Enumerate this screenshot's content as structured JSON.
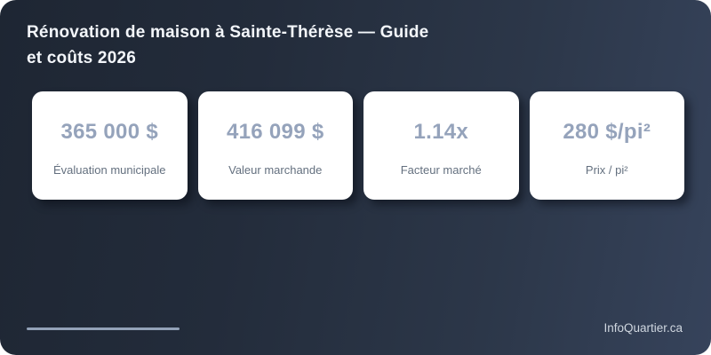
{
  "header": {
    "title": "Rénovation de maison à Sainte-Thérèse — Guide et coûts 2026"
  },
  "stats": [
    {
      "value": "365 000 $",
      "label": "Évaluation municipale"
    },
    {
      "value": "416 099 $",
      "label": "Valeur marchande"
    },
    {
      "value": "1.14x",
      "label": "Facteur marché"
    },
    {
      "value": "280 $/pi²",
      "label": "Prix / pi²"
    }
  ],
  "footer": {
    "brand": "InfoQuartier.ca"
  },
  "colors": {
    "background_gradient_start": "#1e2633",
    "background_gradient_end": "#36435b",
    "card_background": "#ffffff",
    "stat_value_text": "#95a3bb",
    "stat_label_text": "#64707f",
    "title_text": "#f3f6fa",
    "divider": "#93a2b8",
    "brand_text": "#cfd6df"
  }
}
